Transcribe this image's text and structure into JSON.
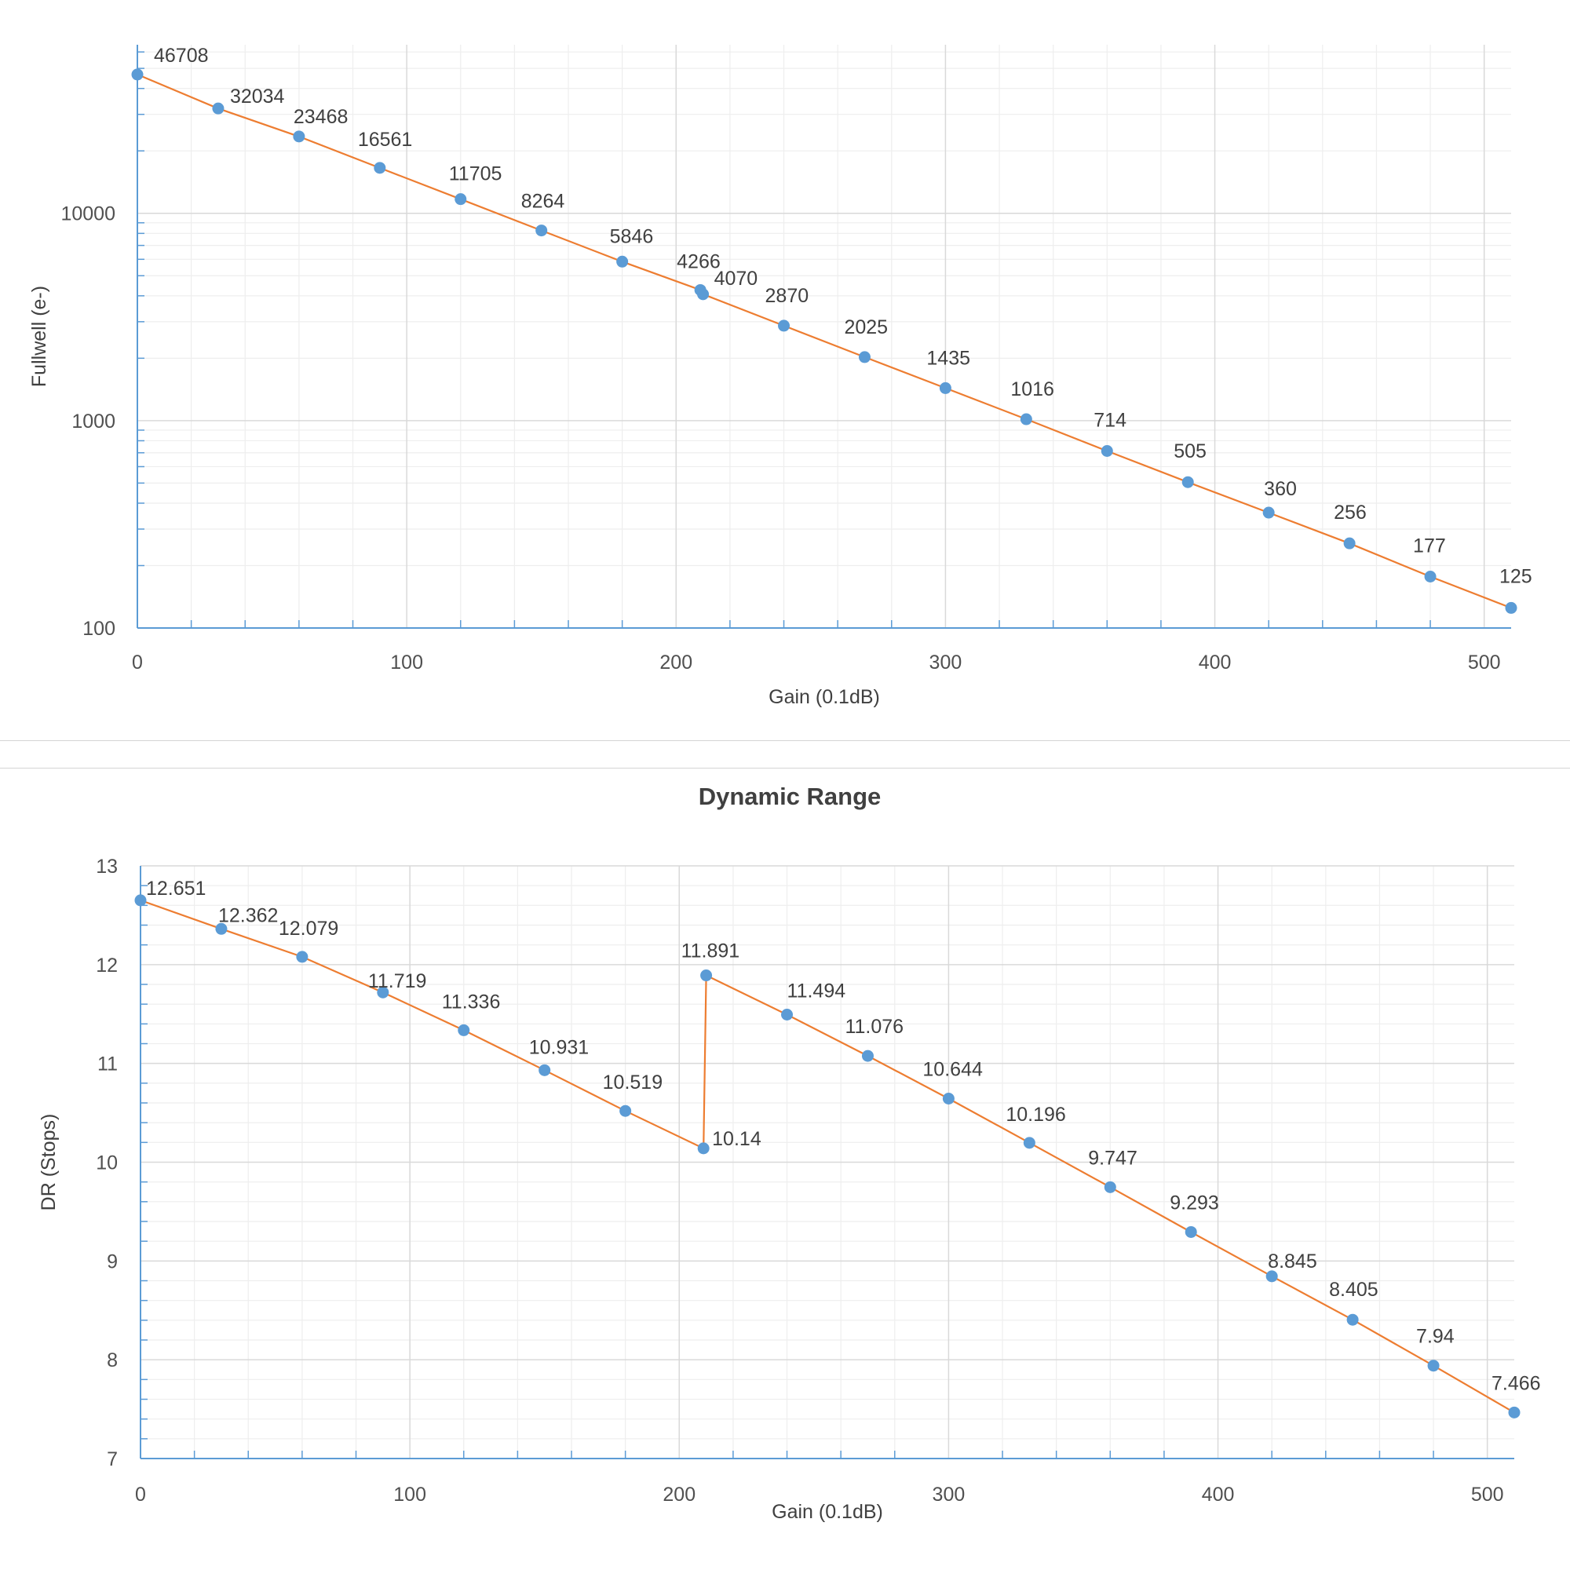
{
  "chart_data": [
    {
      "type": "line",
      "title": "",
      "xlabel": "Gain (0.1dB)",
      "ylabel": "Fullwell (e-)",
      "yscale": "log",
      "xlim": [
        0,
        510
      ],
      "ylim": [
        100,
        65000
      ],
      "xticks": [
        0,
        100,
        200,
        300,
        400,
        500
      ],
      "yticks": [
        100,
        1000,
        10000
      ],
      "ytick_labels": [
        "100",
        "1000",
        "10000"
      ],
      "grid": true,
      "colors": {
        "line": "#ED7D31",
        "marker": "#5B9BD5",
        "axis": "#5B9BD5",
        "grid_major": "#D9D9D9",
        "grid_minor": "#EEEEEE"
      },
      "series": [
        {
          "x": [
            0,
            30,
            60,
            90,
            120,
            150,
            180,
            209,
            210,
            240,
            270,
            300,
            330,
            360,
            390,
            420,
            450,
            480,
            510
          ],
          "y": [
            46708,
            32034,
            23468,
            16561,
            11705,
            8264,
            5846,
            4266,
            4070,
            2870,
            2025,
            1435,
            1016,
            714,
            505,
            360,
            256,
            177,
            125
          ],
          "labels": [
            "46708",
            "32034",
            "23468",
            "16561",
            "11705",
            "8264",
            "5846",
            "4266",
            "4070",
            "2870",
            "2025",
            "1435",
            "1016",
            "714",
            "505",
            "360",
            "256",
            "177",
            "125"
          ]
        }
      ]
    },
    {
      "type": "line",
      "title": "Dynamic Range",
      "xlabel": "Gain (0.1dB)",
      "ylabel": "DR (Stops)",
      "yscale": "linear",
      "xlim": [
        0,
        510
      ],
      "ylim": [
        7,
        13
      ],
      "xticks": [
        0,
        100,
        200,
        300,
        400,
        500
      ],
      "yticks": [
        7,
        8,
        9,
        10,
        11,
        12,
        13
      ],
      "ytick_labels": [
        "7",
        "8",
        "9",
        "10",
        "11",
        "12",
        "13"
      ],
      "grid": true,
      "colors": {
        "line": "#ED7D31",
        "marker": "#5B9BD5",
        "axis": "#5B9BD5",
        "grid_major": "#D9D9D9",
        "grid_minor": "#EEEEEE"
      },
      "series": [
        {
          "x": [
            0,
            30,
            60,
            90,
            120,
            150,
            180,
            209,
            210,
            240,
            270,
            300,
            330,
            360,
            390,
            420,
            450,
            480,
            510
          ],
          "y": [
            12.651,
            12.362,
            12.079,
            11.719,
            11.336,
            10.931,
            10.519,
            10.14,
            11.891,
            11.494,
            11.076,
            10.644,
            10.196,
            9.747,
            9.293,
            8.845,
            8.405,
            7.94,
            7.466
          ],
          "labels": [
            "12.651",
            "12.362",
            "12.079",
            "11.719",
            "11.336",
            "10.931",
            "10.519",
            "10.14",
            "11.891",
            "11.494",
            "11.076",
            "10.644",
            "10.196",
            "9.747",
            "9.293",
            "8.845",
            "8.405",
            "7.94",
            "7.466"
          ]
        }
      ]
    }
  ]
}
